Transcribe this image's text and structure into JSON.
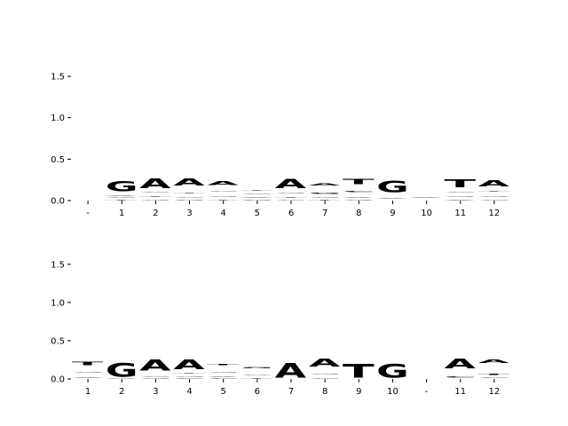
{
  "chart_data": [
    {
      "type": "sequence-logo",
      "title": "",
      "xlabel": "",
      "ylabel": "",
      "ylim": [
        0,
        1.8
      ],
      "yticks": [
        "0.0",
        "0.5",
        "1.0",
        "1.5"
      ],
      "ytick_values": [
        0,
        0.5,
        1.0,
        1.5
      ],
      "positions": [
        "-",
        "1",
        "2",
        "3",
        "4",
        "5",
        "6",
        "7",
        "8",
        "9",
        "10",
        "11",
        "12"
      ],
      "columns": [
        [],
        [
          {
            "l": "T",
            "v": 0.03
          },
          {
            "l": "C",
            "v": 0.03
          },
          {
            "l": "A",
            "v": 0.05
          },
          {
            "l": "G",
            "v": 1.28
          }
        ],
        [
          {
            "l": "G",
            "v": 0.05
          },
          {
            "l": "T",
            "v": 0.05
          },
          {
            "l": "C",
            "v": 0.05
          },
          {
            "l": "A",
            "v": 1.18
          }
        ],
        [
          {
            "l": "G",
            "v": 0.03
          },
          {
            "l": "C",
            "v": 0.06
          },
          {
            "l": "T",
            "v": 0.09
          },
          {
            "l": "A",
            "v": 0.85
          }
        ],
        [
          {
            "l": "T",
            "v": 0.05
          },
          {
            "l": "G",
            "v": 0.06
          },
          {
            "l": "C",
            "v": 0.08
          },
          {
            "l": "A",
            "v": 0.51
          }
        ],
        [
          {
            "l": "G",
            "v": 0.03
          },
          {
            "l": "A",
            "v": 0.05
          },
          {
            "l": "C",
            "v": 0.04
          },
          {
            "l": "T",
            "v": 0.09
          }
        ],
        [
          {
            "l": "C",
            "v": 0.03
          },
          {
            "l": "T",
            "v": 0.06
          },
          {
            "l": "G",
            "v": 0.06
          },
          {
            "l": "A",
            "v": 1.08
          }
        ],
        [
          {
            "l": "T",
            "v": 0.04
          },
          {
            "l": "C",
            "v": 0.04
          },
          {
            "l": "G",
            "v": 0.1
          },
          {
            "l": "A",
            "v": 0.24
          }
        ],
        [
          {
            "l": "G",
            "v": 0.04
          },
          {
            "l": "A",
            "v": 0.06
          },
          {
            "l": "C",
            "v": 0.1
          },
          {
            "l": "T",
            "v": 0.63
          }
        ],
        [
          {
            "l": "C",
            "v": 0.02
          },
          {
            "l": "A",
            "v": 0.06
          },
          {
            "l": "T",
            "v": 0.02
          },
          {
            "l": "G",
            "v": 1.41
          }
        ],
        [
          {
            "l": "T",
            "v": 0.01
          },
          {
            "l": "G",
            "v": 0.01
          },
          {
            "l": "C",
            "v": 0.01
          },
          {
            "l": "A",
            "v": 0.03
          }
        ],
        [
          {
            "l": "A",
            "v": 0.05
          },
          {
            "l": "G",
            "v": 0.05
          },
          {
            "l": "C",
            "v": 0.06
          },
          {
            "l": "T",
            "v": 0.98
          }
        ],
        [
          {
            "l": "C",
            "v": 0.05
          },
          {
            "l": "G",
            "v": 0.06
          },
          {
            "l": "T",
            "v": 0.06
          },
          {
            "l": "A",
            "v": 0.73
          }
        ]
      ]
    },
    {
      "type": "sequence-logo",
      "title": "",
      "xlabel": "",
      "ylabel": "",
      "ylim": [
        0,
        1.95
      ],
      "yticks": [
        "0.0",
        "0.5",
        "1.0",
        "1.5"
      ],
      "ytick_values": [
        0,
        0.5,
        1.0,
        1.5
      ],
      "positions": [
        "1",
        "2",
        "3",
        "4",
        "5",
        "6",
        "7",
        "8",
        "9",
        "10",
        "-",
        "11",
        "12"
      ],
      "columns": [
        [
          {
            "l": "C",
            "v": 0.02
          },
          {
            "l": "A",
            "v": 0.06
          },
          {
            "l": "G",
            "v": 0.1
          },
          {
            "l": "T",
            "v": 0.42
          }
        ],
        [
          {
            "l": "A",
            "v": 0.03
          },
          {
            "l": "G",
            "v": 1.77
          }
        ],
        [
          {
            "l": "G",
            "v": 0.03
          },
          {
            "l": "C",
            "v": 0.08
          },
          {
            "l": "A",
            "v": 1.4
          }
        ],
        [
          {
            "l": "C",
            "v": 0.03
          },
          {
            "l": "G",
            "v": 0.04
          },
          {
            "l": "T",
            "v": 0.06
          },
          {
            "l": "A",
            "v": 1.28
          }
        ],
        [
          {
            "l": "C",
            "v": 0.03
          },
          {
            "l": "A",
            "v": 0.05
          },
          {
            "l": "G",
            "v": 0.1
          },
          {
            "l": "T",
            "v": 0.15
          }
        ],
        [
          {
            "l": "T",
            "v": 0.05
          },
          {
            "l": "A",
            "v": 0.09
          },
          {
            "l": "G",
            "v": 0.11
          }
        ],
        [
          {
            "l": "T",
            "v": 0.02
          },
          {
            "l": "A",
            "v": 1.88
          }
        ],
        [
          {
            "l": "C",
            "v": 0.06
          },
          {
            "l": "G",
            "v": 0.1
          },
          {
            "l": "A",
            "v": 1.02
          }
        ],
        [
          {
            "l": "C",
            "v": 0.02
          },
          {
            "l": "T",
            "v": 1.82
          }
        ],
        [
          {
            "l": "A",
            "v": 0.02
          },
          {
            "l": "G",
            "v": 1.8
          }
        ],
        [],
        [
          {
            "l": "T",
            "v": 0.02
          },
          {
            "l": "C",
            "v": 0.12
          },
          {
            "l": "A",
            "v": 1.26
          }
        ],
        [
          {
            "l": "G",
            "v": 0.02
          },
          {
            "l": "C",
            "v": 0.03
          },
          {
            "l": "T",
            "v": 0.16
          },
          {
            "l": "A",
            "v": 0.43
          }
        ]
      ]
    }
  ],
  "colors": {
    "A": "#008000",
    "C": "#0000ff",
    "G": "#ffa500",
    "T": "#ff0000"
  }
}
